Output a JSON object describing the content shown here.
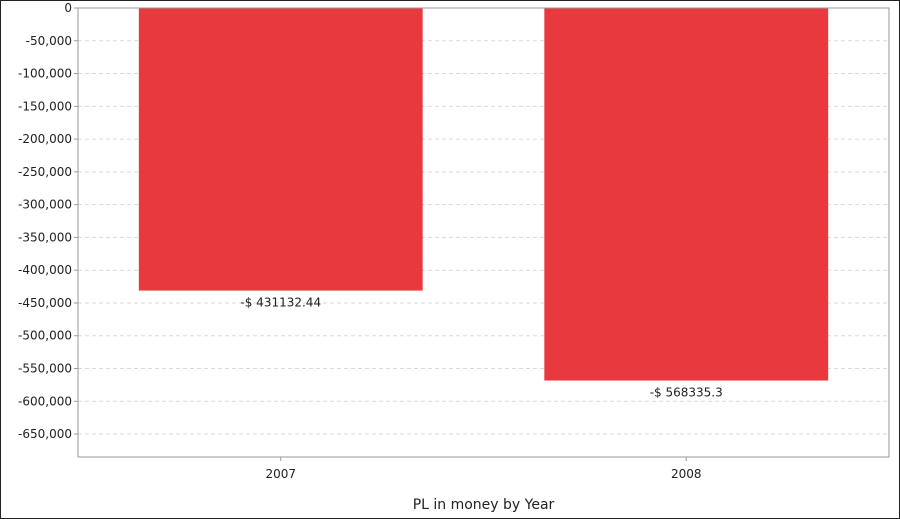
{
  "chart_data": {
    "type": "bar",
    "categories": [
      "2007",
      "2008"
    ],
    "values": [
      -431132.44,
      -568335.3
    ],
    "data_labels": [
      "-$ 431132.44",
      "-$ 568335.3"
    ],
    "y_ticks": [
      0,
      -50000,
      -100000,
      -150000,
      -200000,
      -250000,
      -300000,
      -350000,
      -400000,
      -450000,
      -500000,
      -550000,
      -600000,
      -650000
    ],
    "y_tick_labels": [
      "0",
      "-50,000",
      "-100,000",
      "-150,000",
      "-200,000",
      "-250,000",
      "-300,000",
      "-350,000",
      "-400,000",
      "-450,000",
      "-500,000",
      "-550,000",
      "-600,000",
      "-650,000"
    ],
    "ylim": [
      -685000,
      0
    ],
    "xlabel": "PL in money by Year",
    "ylabel": "",
    "title": "",
    "grid": true,
    "legend": "none",
    "bar_color": "#e8393e",
    "grid_color": "#d9d9d9",
    "axis_color": "#9a9a9a"
  }
}
